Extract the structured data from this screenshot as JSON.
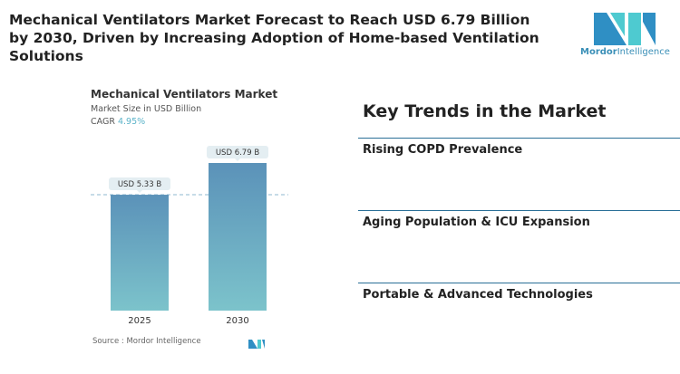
{
  "title": "Mechanical Ventilators Market Forecast to Reach USD 6.79 Billion by 2030, Driven by Increasing Adoption of Home-based Ventilation Solutions",
  "logo": {
    "text_bold": "Mordor",
    "text_light": "Intelligence"
  },
  "chart_data": {
    "type": "bar",
    "title": "Mechanical Ventilators Market",
    "subtitle": "Market Size in USD Billion",
    "cagr_label": "CAGR",
    "cagr_value": "4.95%",
    "categories": [
      "2025",
      "2030"
    ],
    "values": [
      5.33,
      6.79
    ],
    "data_labels": [
      "USD 5.33 B",
      "USD 6.79 B"
    ],
    "colors": {
      "top": "#5b92b9",
      "bottom": "#7cc3cb"
    },
    "source": "Source :  Mordor Intelligence"
  },
  "trends": {
    "heading": "Key Trends in the Market",
    "items": [
      "Rising COPD Prevalence",
      "Aging Population & ICU Expansion",
      "Portable & Advanced Technologies"
    ]
  }
}
